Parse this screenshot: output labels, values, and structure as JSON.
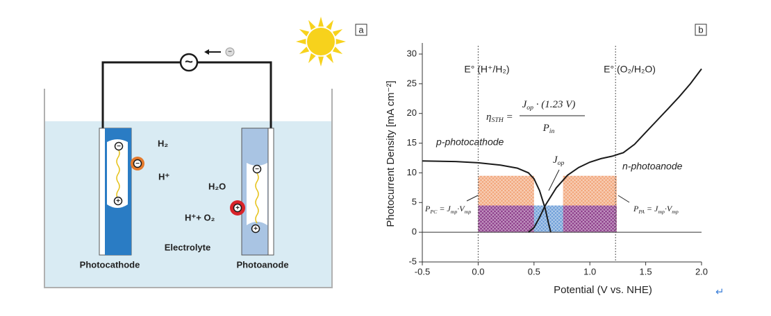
{
  "panel_a": {
    "panel_label": "a",
    "electron": "−",
    "source": "~",
    "minus": "−",
    "plus": "+",
    "h2": "H₂",
    "h_plus": "H⁺",
    "h2o": "H₂O",
    "h_plus_o2": "H⁺+ O₂",
    "electrolyte": "Electrolyte",
    "photocathode": "Photocathode",
    "photoanode": "Photoanode"
  },
  "chart_data": {
    "type": "line",
    "panel_label": "b",
    "xlabel": "Potential (V vs. NHE)",
    "ylabel": "Photocurrent Density [mA cm⁻²]",
    "xlim": [
      -0.5,
      2.0
    ],
    "ylim": [
      -5,
      30
    ],
    "xticks": [
      -0.5,
      {
        "value": 0,
        "label": "0.0"
      },
      0.5,
      {
        "value": 1,
        "label": "1.0"
      },
      1.5,
      {
        "value": 2,
        "label": "2.0"
      }
    ],
    "yticks": [
      -5,
      0,
      5,
      10,
      15,
      20,
      25,
      30
    ],
    "series": [
      {
        "name": "p-photocathode",
        "color": "#1a1a1a",
        "x": [
          -0.5,
          -0.2,
          0,
          0.2,
          0.35,
          0.45,
          0.5,
          0.55,
          0.6,
          0.63,
          0.65
        ],
        "values": [
          12.0,
          11.9,
          11.7,
          11.3,
          10.8,
          10.0,
          9.0,
          7.0,
          4.0,
          1.5,
          0
        ]
      },
      {
        "name": "n-photoanode",
        "color": "#1a1a1a",
        "x": [
          0.45,
          0.5,
          0.55,
          0.6,
          0.7,
          0.8,
          0.9,
          1.0,
          1.1,
          1.2,
          1.3,
          1.4,
          1.5,
          1.6,
          1.7,
          1.8,
          1.9,
          2.0
        ],
        "values": [
          0,
          0.8,
          2.5,
          4.5,
          7.5,
          9.6,
          10.9,
          11.8,
          12.4,
          12.8,
          13.4,
          14.8,
          16.8,
          18.8,
          20.8,
          22.8,
          25.0,
          27.5
        ]
      }
    ],
    "reference_lines": [
      {
        "x": 0,
        "label": "E° (H⁺/H₂)"
      },
      {
        "x": 1.23,
        "label": "E° (O₂/H₂O)"
      }
    ],
    "regions": [
      {
        "x": [
          0,
          0.5
        ],
        "y": [
          0,
          9.5
        ],
        "color": "#f2a77c"
      },
      {
        "x": [
          0.76,
          1.24
        ],
        "y": [
          0,
          9.5
        ],
        "color": "#f2a77c"
      },
      {
        "x": [
          0,
          0.5
        ],
        "y": [
          0,
          4.5
        ],
        "color": "#8e3f8c"
      },
      {
        "x": [
          0.76,
          1.24
        ],
        "y": [
          0,
          4.5
        ],
        "color": "#8e3f8c"
      },
      {
        "x": [
          0.5,
          0.76
        ],
        "y": [
          0,
          4.5
        ],
        "color": "#6f9fd8"
      }
    ],
    "equation": {
      "lhs": [
        {
          "t": "η"
        },
        {
          "t": "STH",
          "sub": true
        },
        {
          "t": " ="
        }
      ],
      "numerator": [
        {
          "t": "J"
        },
        {
          "t": "op",
          "sub": true
        },
        {
          "t": " · (1.23 V)"
        }
      ],
      "denominator": [
        {
          "t": "P"
        },
        {
          "t": "in",
          "sub": true
        }
      ]
    },
    "annotations": [
      [
        {
          "t": "J"
        },
        {
          "t": "op",
          "sub": true
        }
      ],
      [
        {
          "t": "P"
        },
        {
          "t": "PC",
          "sub": true
        },
        {
          "t": " = J"
        },
        {
          "t": "mp",
          "sub": true
        },
        {
          "t": "·V"
        },
        {
          "t": "mp",
          "sub": true
        }
      ],
      [
        {
          "t": "P"
        },
        {
          "t": "PA",
          "sub": true
        },
        {
          "t": " = J"
        },
        {
          "t": "mp",
          "sub": true
        },
        {
          "t": "·V"
        },
        {
          "t": "mp",
          "sub": true
        }
      ]
    ]
  },
  "return_mark": "↵"
}
